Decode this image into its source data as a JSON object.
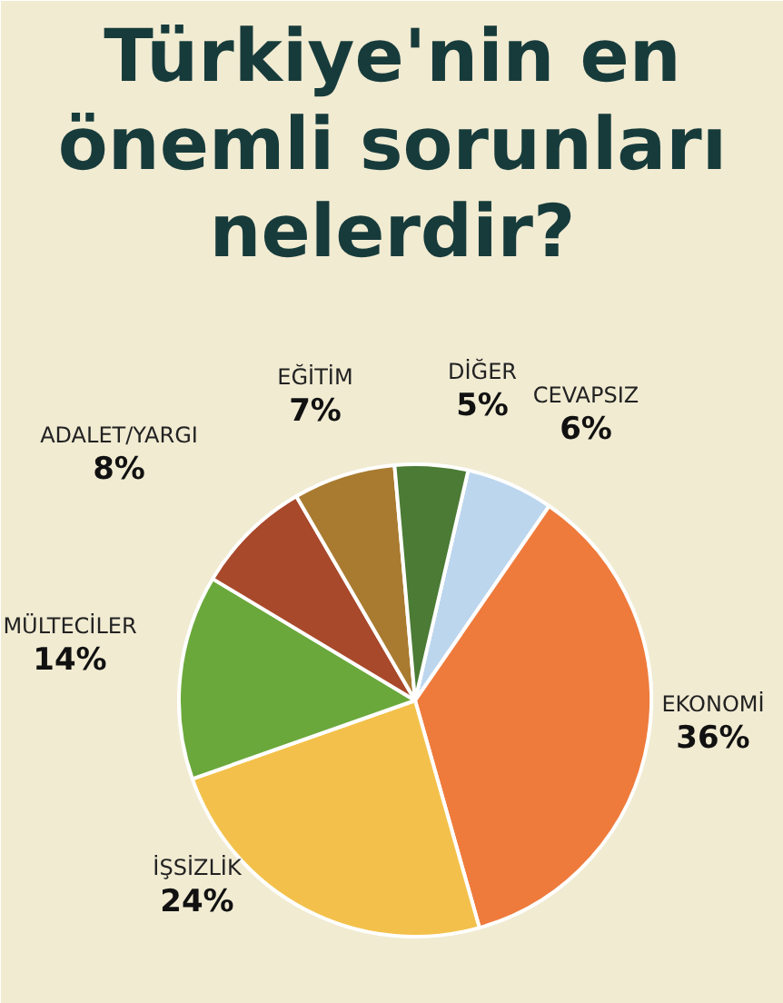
{
  "chart_data": {
    "type": "pie",
    "title": "Türkiye'nin en\nönemli sorunları\nnelerdir?",
    "categories": [
      "CEVAPSIZ",
      "EKONOMİ",
      "İŞSİZLİK",
      "MÜLTECİLER",
      "ADALET/YARGI",
      "EĞİTİM",
      "DİĞER"
    ],
    "values": [
      6,
      36,
      24,
      14,
      8,
      7,
      5
    ],
    "value_labels": [
      "6%",
      "36%",
      "24%",
      "14%",
      "8%",
      "7%",
      "5%"
    ],
    "colors": [
      "#bcd6ee",
      "#ee7b3c",
      "#f3c14b",
      "#6ba83c",
      "#a8492b",
      "#a97b30",
      "#4b7b35"
    ]
  }
}
